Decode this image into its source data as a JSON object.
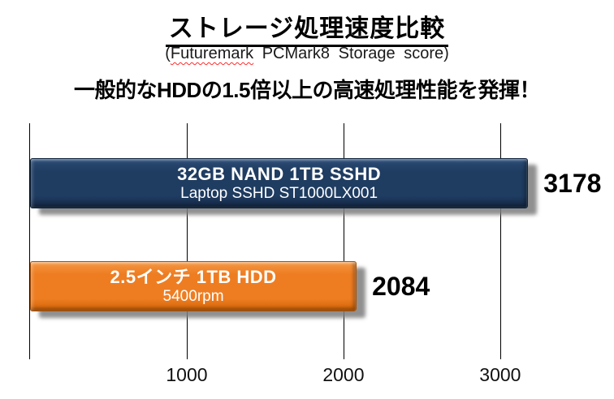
{
  "page": {
    "title": "ストレージ処理速度比較",
    "subtitle": {
      "prefix": "(",
      "spellchecked_word": "Futuremark",
      "suffix": " PCMark8 Storage score)"
    },
    "headline": "一般的なHDDの1.5倍以上の高速処理性能を発揮！"
  },
  "chart_data": {
    "type": "bar",
    "orientation": "horizontal",
    "title": "ストレージ処理速度比較",
    "subtitle": "(Futuremark PCMark8 Storage score)",
    "annotation": "一般的なHDDの1.5倍以上の高速処理性能を発揮！",
    "categories": [
      "32GB NAND 1TB SSHD",
      "2.5インチ 1TB HDD"
    ],
    "category_sublabels": [
      "Laptop SSHD ST1000LX001",
      "5400rpm"
    ],
    "values": [
      3178,
      2084
    ],
    "value_labels": [
      "3178",
      "2084"
    ],
    "bar_colors": [
      "#1f3c61",
      "#ee7d22"
    ],
    "xlim": [
      0,
      3550
    ],
    "x_ticks": [
      1000,
      2000,
      3000
    ],
    "grid": true,
    "legend": false,
    "value_labels_shown": true
  },
  "bars": [
    {
      "label": "32GB NAND 1TB SSHD",
      "sublabel": "Laptop SSHD ST1000LX001",
      "value": "3178",
      "color": "#1f3c61"
    },
    {
      "label": "2.5インチ 1TB HDD",
      "sublabel": "5400rpm",
      "value": "2084",
      "color": "#ee7d22"
    }
  ],
  "axis": {
    "tick_labels": [
      "1000",
      "2000",
      "3000"
    ]
  },
  "colors": {
    "sshd_bar": "#1f3c61",
    "hdd_bar": "#ee7d22",
    "gridline": "#000000",
    "text": "#000000",
    "bar_text": "#ffffff",
    "spellcheck_underline": "#ff2a2a",
    "background": "#ffffff"
  }
}
